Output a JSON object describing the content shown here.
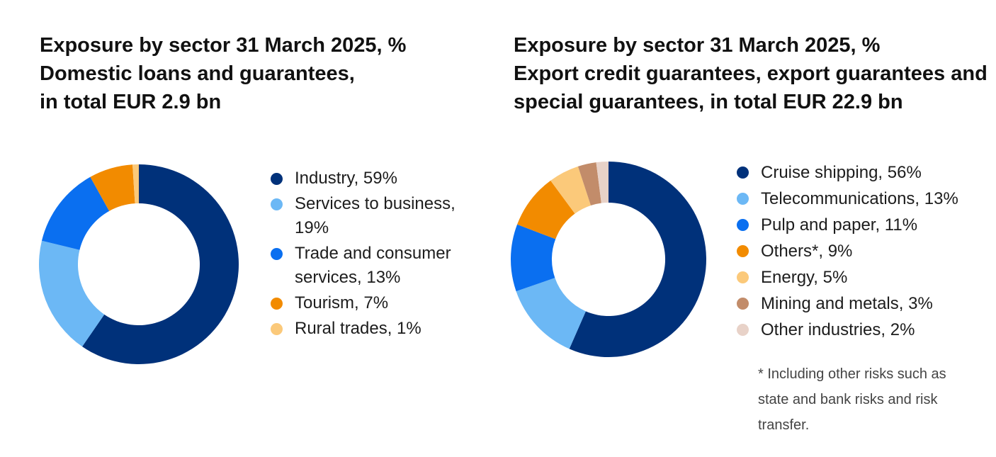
{
  "charts": [
    {
      "title_lines": [
        "Exposure by sector 31 March 2025, %",
        "Domestic loans and guarantees,",
        "in total EUR 2.9 bn"
      ],
      "legend": [
        "Industry, 59%",
        "Services to business, 19%",
        "Trade and consumer services, 13%",
        "Tourism, 7%",
        "Rural trades, 1%"
      ]
    },
    {
      "title_lines": [
        "Exposure by sector 31 March 2025, %",
        "Export credit guarantees, export guarantees and",
        "special guarantees, in total EUR 22.9 bn"
      ],
      "legend": [
        "Cruise shipping, 56%",
        "Telecommunications, 13%",
        "Pulp and paper, 11%",
        "Others*, 9%",
        "Energy, 5%",
        "Mining and metals, 3%",
        "Other industries, 2%"
      ],
      "footnote": "* Including other risks such as state and bank risks and risk transfer."
    }
  ],
  "chart_data": [
    {
      "type": "pie",
      "style": "donut",
      "title": "Exposure by sector 31 March 2025, % Domestic loans and guarantees, in total EUR 2.9 bn",
      "unit": "%",
      "categories": [
        "Industry",
        "Services to business",
        "Trade and consumer services",
        "Tourism",
        "Rural trades"
      ],
      "values": [
        59,
        19,
        13,
        7,
        1
      ],
      "colors": [
        "#00317a",
        "#6cb8f5",
        "#0a6ff0",
        "#f28b00",
        "#fbc97a"
      ],
      "legend_position": "right"
    },
    {
      "type": "pie",
      "style": "donut",
      "title": "Exposure by sector 31 March 2025, % Export credit guarantees, export guarantees and special guarantees, in total EUR 22.9 bn",
      "unit": "%",
      "categories": [
        "Cruise shipping",
        "Telecommunications",
        "Pulp and paper",
        "Others*",
        "Energy",
        "Mining and metals",
        "Other industries"
      ],
      "values": [
        56,
        13,
        11,
        9,
        5,
        3,
        2
      ],
      "colors": [
        "#00317a",
        "#6cb8f5",
        "#0a6ff0",
        "#f28b00",
        "#fbc97a",
        "#c28c6a",
        "#e8d2c8"
      ],
      "legend_position": "right"
    }
  ]
}
